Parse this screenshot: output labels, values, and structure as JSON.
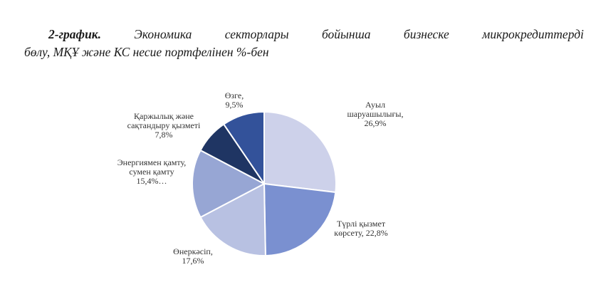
{
  "caption": {
    "label": "2-график.",
    "line1_words": [
      "Экономика",
      "секторлары",
      "бойынша",
      "бизнеске",
      "микрокредиттерді"
    ],
    "line2": "бөлу, МҚҰ және КС несие портфелінен %-бен"
  },
  "chart_data": {
    "type": "pie",
    "slices": [
      {
        "value": 26.9,
        "color": "#cdd1ea",
        "label_lines": [
          "Ауыл",
          "шаруашылығы,",
          "26,9%"
        ]
      },
      {
        "value": 22.8,
        "color": "#7a90d0",
        "label_lines": [
          "Түрлі қызмет",
          "көрсету, 22,8%"
        ]
      },
      {
        "value": 17.6,
        "color": "#b8c1e2",
        "label_lines": [
          "Өнеркәсіп,",
          "17,6%"
        ]
      },
      {
        "value": 15.4,
        "color": "#97a6d4",
        "label_lines": [
          "Энергиямен қамту,",
          "сумен қамту",
          "15,4%…"
        ]
      },
      {
        "value": 7.8,
        "color": "#1f3563",
        "label_lines": [
          "Қаржылық және",
          "сақтандыру қызметі",
          "7,8%"
        ]
      },
      {
        "value": 9.5,
        "color": "#33529a",
        "label_lines": [
          "Өзге,",
          "9,5%"
        ]
      }
    ]
  }
}
